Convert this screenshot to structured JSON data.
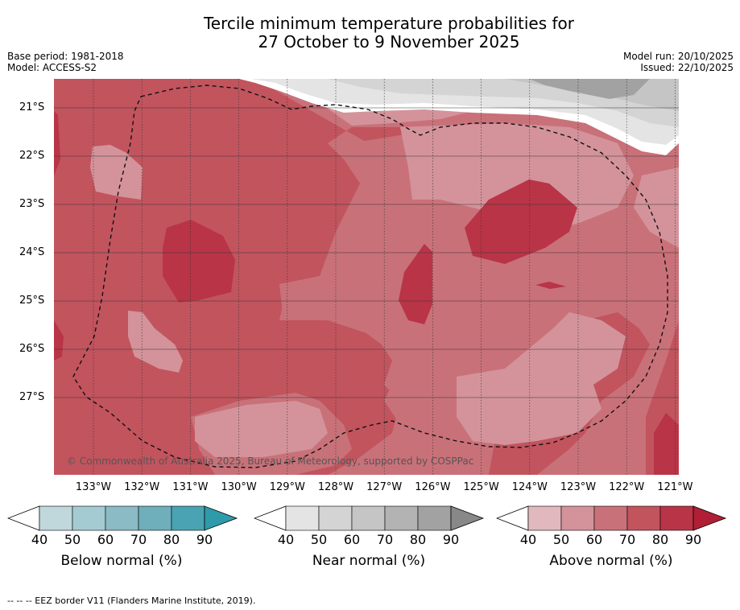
{
  "title_line1": "Tercile minimum temperature probabilities for",
  "title_line2": "27 October to 9 November 2025",
  "base_period": "Base period: 1981-2018",
  "model": "Model: ACCESS-S2",
  "model_run": "Model run: 20/10/2025",
  "issued": "Issued: 22/10/2025",
  "copyright": "© Commonwealth of Australia 2025, Bureau of Meteorology, supported by COSPPac",
  "lat_labels": [
    "21°S",
    "22°S",
    "23°S",
    "24°S",
    "25°S",
    "26°S",
    "27°S"
  ],
  "lon_labels": [
    "133°W",
    "132°W",
    "131°W",
    "130°W",
    "129°W",
    "128°W",
    "127°W",
    "126°W",
    "125°W",
    "124°W",
    "123°W",
    "122°W",
    "121°W"
  ],
  "colorbars": [
    {
      "title": "Below normal (%)",
      "ticks": [
        "40",
        "50",
        "60",
        "70",
        "80",
        "90"
      ],
      "colors": [
        "#c0d7dc",
        "#a5cbd2",
        "#8bbbc5",
        "#6faebb",
        "#4aa3b2"
      ],
      "extend": "#2f9aaa"
    },
    {
      "title": "Near normal (%)",
      "ticks": [
        "40",
        "50",
        "60",
        "70",
        "80",
        "90"
      ],
      "colors": [
        "#e4e4e4",
        "#d4d4d4",
        "#c5c5c5",
        "#b3b3b3",
        "#a2a2a2"
      ],
      "extend": "#888888"
    },
    {
      "title": "Above normal (%)",
      "ticks": [
        "40",
        "50",
        "60",
        "70",
        "80",
        "90"
      ],
      "colors": [
        "#e0b8be",
        "#d4939b",
        "#c97179",
        "#c2545e",
        "#b93447"
      ],
      "extend": "#b01f36"
    }
  ],
  "footer": "--  --  -- EEZ border V11 (Flanders Marine Institute, 2019)."
}
